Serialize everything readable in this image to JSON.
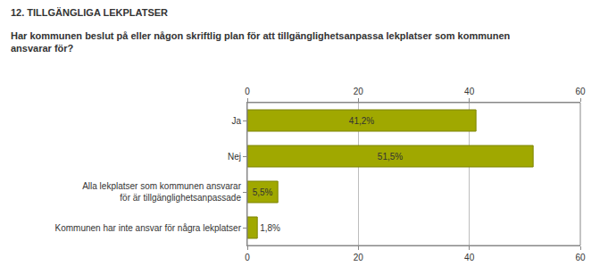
{
  "chart_data": {
    "type": "bar",
    "title": "12. TILLGÄNGLIGA LEKPLATSER",
    "subtitle": "Har kommunen beslut på eller någon skriftlig plan för att tillgänglighetsanpassa lekplatser som kommunen\nansvarar för?",
    "categories": [
      "Ja",
      "Nej",
      "Alla lekplatser som kommunen ansvarar\nför är tillgänglighetsanpassade",
      "Kommunen har inte ansvar för några lekplatser"
    ],
    "values": [
      41.2,
      51.5,
      5.5,
      1.8
    ],
    "value_labels": [
      "41,2%",
      "51,5%",
      "5,5%",
      "1,8%"
    ],
    "color": "#a0a800",
    "xlim": [
      0,
      60
    ],
    "xticks": [
      0,
      20,
      40,
      60
    ],
    "grid": true,
    "orientation": "horizontal",
    "data_labels": true
  }
}
